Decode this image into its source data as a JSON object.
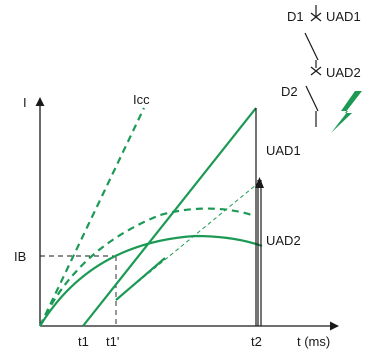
{
  "labels": {
    "y_axis": "I",
    "x_axis": "t (ms)",
    "icc": "Icc",
    "ib": "IB",
    "t1": "t1",
    "t1_prime": "t1'",
    "t2": "t2",
    "uad1_graph": "UAD1",
    "uad2_graph": "UAD2",
    "d1": "D1",
    "d2": "D2",
    "uad1_schematic": "UAD1",
    "uad2_schematic": "UAD2"
  },
  "colors": {
    "curve": "#1c9a55",
    "axis": "#1a1a1a"
  },
  "icons": {
    "fault": "lightning-bolt-icon",
    "breaker": "switch-contact-icon"
  }
}
